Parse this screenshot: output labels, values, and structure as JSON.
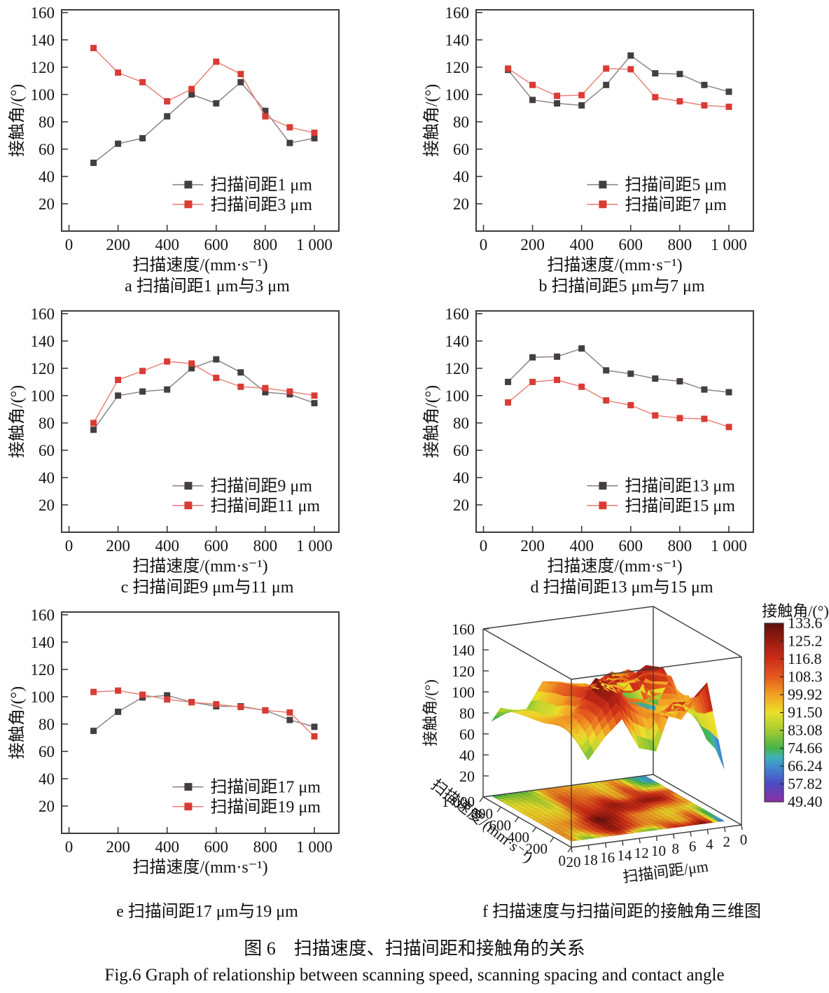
{
  "figure": {
    "caption_zh": "图 6　扫描速度、扫描间距和接触角的关系",
    "caption_en": "Fig.6 Graph of relationship between scanning speed, scanning spacing and contact angle"
  },
  "colors": {
    "frame": "#3c3c3c",
    "dark_marker": "#443e3e",
    "dark_line": "#8b8684",
    "red_marker": "#d83c34",
    "red_line": "#e8837a"
  },
  "chart_data": [
    {
      "id": "a",
      "type": "line",
      "caption": "a  扫描间距1 μm与3 μm",
      "xlabel": "扫描速度/(mm·s⁻¹)",
      "ylabel": "接触角/(°)",
      "x": [
        100,
        200,
        300,
        400,
        500,
        600,
        700,
        800,
        900,
        1000
      ],
      "xticks": [
        0,
        200,
        400,
        600,
        800,
        1000
      ],
      "yticks": [
        20,
        40,
        60,
        80,
        100,
        120,
        140,
        160
      ],
      "xlim": [
        -30,
        1100
      ],
      "ylim": [
        0,
        162
      ],
      "legend_position": "inside-bottom-right",
      "grid": false,
      "series": [
        {
          "name": "扫描间距1 μm",
          "marker_color": "#443e3e",
          "line_color": "#8b8684",
          "values": [
            50,
            64,
            68,
            84,
            100,
            93.5,
            109,
            88,
            64.5,
            68
          ]
        },
        {
          "name": "扫描间距3 μm",
          "marker_color": "#d83c34",
          "line_color": "#e8837a",
          "values": [
            134,
            116,
            109,
            95,
            104,
            124,
            115,
            84,
            76,
            72
          ]
        }
      ]
    },
    {
      "id": "b",
      "type": "line",
      "caption": "b  扫描间距5 μm与7 μm",
      "xlabel": "扫描速度/(mm·s⁻¹)",
      "ylabel": "接触角/(°)",
      "x": [
        100,
        200,
        300,
        400,
        500,
        600,
        700,
        800,
        900,
        1000
      ],
      "xticks": [
        0,
        200,
        400,
        600,
        800,
        1000
      ],
      "yticks": [
        20,
        40,
        60,
        80,
        100,
        120,
        140,
        160
      ],
      "xlim": [
        -30,
        1100
      ],
      "ylim": [
        0,
        162
      ],
      "legend_position": "inside-bottom-right",
      "grid": false,
      "series": [
        {
          "name": "扫描间距5 μm",
          "marker_color": "#443e3e",
          "line_color": "#8b8684",
          "values": [
            118,
            96,
            93.5,
            92,
            107,
            128.5,
            115.5,
            115,
            107,
            102
          ]
        },
        {
          "name": "扫描间距7 μm",
          "marker_color": "#d83c34",
          "line_color": "#e8837a",
          "values": [
            119,
            107,
            99,
            99.5,
            119,
            118.5,
            98,
            95,
            92,
            91
          ]
        }
      ]
    },
    {
      "id": "c",
      "type": "line",
      "caption": "c  扫描间距9 μm与11 μm",
      "xlabel": "扫描速度/(mm·s⁻¹)",
      "ylabel": "接触角/(°)",
      "x": [
        100,
        200,
        300,
        400,
        500,
        600,
        700,
        800,
        900,
        1000
      ],
      "xticks": [
        0,
        200,
        400,
        600,
        800,
        1000
      ],
      "yticks": [
        20,
        40,
        60,
        80,
        100,
        120,
        140,
        160
      ],
      "xlim": [
        -30,
        1100
      ],
      "ylim": [
        0,
        162
      ],
      "legend_position": "inside-bottom-right",
      "grid": false,
      "series": [
        {
          "name": "扫描间距9 μm",
          "marker_color": "#443e3e",
          "line_color": "#8b8684",
          "values": [
            75,
            100,
            103,
            104.5,
            120,
            126.5,
            117,
            102.5,
            101,
            94.5
          ]
        },
        {
          "name": "扫描间距11 μm",
          "marker_color": "#d83c34",
          "line_color": "#e8837a",
          "values": [
            80,
            111.5,
            118,
            125,
            123.5,
            113,
            106.5,
            105.5,
            103,
            100
          ]
        }
      ]
    },
    {
      "id": "d",
      "type": "line",
      "caption": "d  扫描间距13 μm与15 μm",
      "xlabel": "扫描速度/(mm·s⁻¹)",
      "ylabel": "接触角/(°)",
      "x": [
        100,
        200,
        300,
        400,
        500,
        600,
        700,
        800,
        900,
        1000
      ],
      "xticks": [
        0,
        200,
        400,
        600,
        800,
        1000
      ],
      "yticks": [
        20,
        40,
        60,
        80,
        100,
        120,
        140,
        160
      ],
      "xlim": [
        -30,
        1100
      ],
      "ylim": [
        0,
        162
      ],
      "legend_position": "inside-bottom-right",
      "grid": false,
      "series": [
        {
          "name": "扫描间距13 μm",
          "marker_color": "#443e3e",
          "line_color": "#8b8684",
          "values": [
            110,
            128,
            128.5,
            134.5,
            118.5,
            116,
            112.5,
            110.5,
            104.5,
            102.5
          ]
        },
        {
          "name": "扫描间距15 μm",
          "marker_color": "#d83c34",
          "line_color": "#e8837a",
          "values": [
            95,
            110,
            111.5,
            106.5,
            96.5,
            93,
            85.5,
            83.5,
            83,
            77
          ]
        }
      ]
    },
    {
      "id": "e",
      "type": "line",
      "caption": "e  扫描间距17 μm与19 μm",
      "xlabel": "扫描速度/(mm·s⁻¹)",
      "ylabel": "接触角/(°)",
      "x": [
        100,
        200,
        300,
        400,
        500,
        600,
        700,
        800,
        900,
        1000
      ],
      "xticks": [
        0,
        200,
        400,
        600,
        800,
        1000
      ],
      "yticks": [
        20,
        40,
        60,
        80,
        100,
        120,
        140,
        160
      ],
      "xlim": [
        -30,
        1100
      ],
      "ylim": [
        0,
        162
      ],
      "legend_position": "inside-bottom-right",
      "grid": false,
      "series": [
        {
          "name": "扫描间距17 μm",
          "marker_color": "#443e3e",
          "line_color": "#8b8684",
          "values": [
            75,
            89,
            99.5,
            101,
            96,
            93,
            93,
            90,
            83,
            78
          ]
        },
        {
          "name": "扫描间距19 μm",
          "marker_color": "#d83c34",
          "line_color": "#e8837a",
          "values": [
            103.5,
            104.5,
            101.5,
            98,
            96,
            94.5,
            92.5,
            90,
            88.5,
            71
          ]
        }
      ]
    },
    {
      "id": "f",
      "type": "surface3d",
      "caption": "f  扫描速度与扫描间距的接触角三维图",
      "xlabel": "扫描间距/μm",
      "ylabel": "扫描速度/(mm·s⁻¹)",
      "zlabel": "接触角/(°)",
      "zticks": [
        20,
        40,
        60,
        80,
        100,
        120,
        140,
        160
      ],
      "spacing_ticks": [
        20,
        18,
        16,
        14,
        12,
        10,
        8,
        6,
        4,
        2,
        0
      ],
      "speed_ticks": [
        0,
        200,
        400,
        600,
        800,
        1000
      ],
      "zlim": [
        0,
        160
      ],
      "spacing_lim": [
        0,
        20
      ],
      "speed_lim": [
        0,
        1000
      ],
      "colorbar": {
        "title": "接触角/(°)",
        "ticks": [
          "133.6",
          "125.2",
          "116.8",
          "108.3",
          "99.92",
          "91.50",
          "83.08",
          "74.66",
          "66.24",
          "57.82",
          "49.40"
        ],
        "stops": [
          [
            49.4,
            "#8b2fa3"
          ],
          [
            57.82,
            "#4b49c4"
          ],
          [
            66.24,
            "#3e8ed2"
          ],
          [
            70.5,
            "#3fb3b6"
          ],
          [
            74.66,
            "#45b448"
          ],
          [
            83.08,
            "#a3cc30"
          ],
          [
            91.5,
            "#ecdf2b"
          ],
          [
            99.92,
            "#f2a024"
          ],
          [
            108.3,
            "#e4591e"
          ],
          [
            116.8,
            "#cd2d18"
          ],
          [
            125.2,
            "#9b1b10"
          ],
          [
            133.6,
            "#5e100c"
          ]
        ]
      },
      "surface": {
        "spacings": [
          1,
          3,
          5,
          7,
          9,
          11,
          13,
          15,
          17,
          19
        ],
        "speeds": [
          100,
          200,
          300,
          400,
          500,
          600,
          700,
          800,
          900,
          1000
        ],
        "values": [
          [
            50,
            64,
            68,
            84,
            100,
            93.5,
            109,
            88,
            64.5,
            68
          ],
          [
            134,
            116,
            109,
            95,
            104,
            124,
            115,
            84,
            76,
            72
          ],
          [
            118,
            96,
            93.5,
            92,
            107,
            128.5,
            115.5,
            115,
            107,
            102
          ],
          [
            119,
            107,
            99,
            99.5,
            119,
            118.5,
            98,
            95,
            92,
            91
          ],
          [
            75,
            100,
            103,
            104.5,
            120,
            126.5,
            117,
            102.5,
            101,
            94.5
          ],
          [
            80,
            111.5,
            118,
            125,
            123.5,
            113,
            106.5,
            105.5,
            103,
            100
          ],
          [
            110,
            128,
            128.5,
            134.5,
            118.5,
            116,
            112.5,
            110.5,
            104.5,
            102.5
          ],
          [
            95,
            110,
            111.5,
            106.5,
            96.5,
            93,
            85.5,
            83.5,
            83,
            77
          ],
          [
            75,
            89,
            99.5,
            101,
            96,
            93,
            93,
            90,
            83,
            78
          ],
          [
            103.5,
            104.5,
            101.5,
            98,
            96,
            94.5,
            92.5,
            90,
            88.5,
            71
          ]
        ]
      }
    }
  ]
}
